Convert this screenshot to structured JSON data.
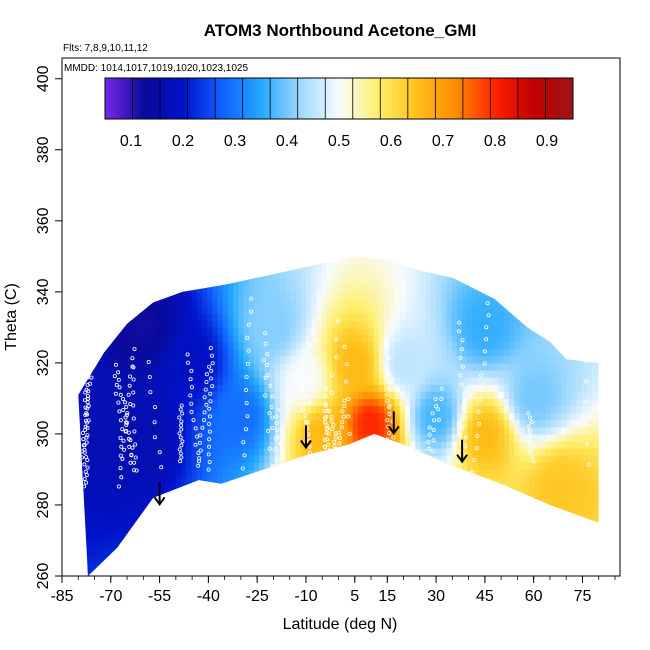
{
  "chart_data": {
    "type": "heatmap",
    "title": "ATOM3 Northbound Acetone_GMI",
    "flights_label": "Flts: 7,8,9,10,11,12",
    "mmdd_label": "MMDD: 1014,1017,1019,1020,1023,1025",
    "xlabel": "Latitude (deg N)",
    "ylabel": "Theta (C)",
    "xlim": [
      -85,
      85
    ],
    "ylim": [
      260,
      405
    ],
    "x_ticks": [
      -85,
      -70,
      -55,
      -40,
      -25,
      -10,
      5,
      15,
      30,
      45,
      60,
      75
    ],
    "x_tick_labels": [
      "-85",
      "-70",
      "-55",
      "-40",
      "-25",
      "-10",
      "5",
      "15",
      "30",
      "45",
      "60",
      "75"
    ],
    "y_ticks": [
      260,
      280,
      300,
      320,
      340,
      360,
      380,
      400
    ],
    "y_tick_labels": [
      "260",
      "280",
      "300",
      "320",
      "340",
      "360",
      "380",
      "400"
    ],
    "colorbar": {
      "range": [
        0.05,
        0.95
      ],
      "ticks": [
        0.1,
        0.2,
        0.3,
        0.4,
        0.5,
        0.6,
        0.7,
        0.8,
        0.9
      ],
      "tick_labels": [
        "0.1",
        "0.2",
        "0.3",
        "0.4",
        "0.5",
        "0.6",
        "0.7",
        "0.8",
        "0.9"
      ],
      "colors": [
        "#7a28e8",
        "#0a0a9a",
        "#0012c8",
        "#1060ff",
        "#22a8ff",
        "#9ed8ff",
        "#f8fbff",
        "#ffef6a",
        "#ffc11a",
        "#ff8a00",
        "#ff2200",
        "#c00000",
        "#a01414"
      ]
    },
    "domain_lower_boundary": [
      [
        -77,
        260
      ],
      [
        -68,
        268
      ],
      [
        -57,
        282
      ],
      [
        -43,
        287
      ],
      [
        -36,
        286
      ],
      [
        -10,
        294
      ],
      [
        3,
        297
      ],
      [
        11,
        300
      ],
      [
        20,
        297
      ],
      [
        35,
        291
      ],
      [
        50,
        286
      ],
      [
        65,
        280
      ],
      [
        80,
        275
      ]
    ],
    "domain_upper_boundary": [
      [
        -80,
        311
      ],
      [
        -72,
        323
      ],
      [
        -65,
        331
      ],
      [
        -57,
        337
      ],
      [
        -48,
        340
      ],
      [
        -35,
        342
      ],
      [
        -25,
        344
      ],
      [
        -15,
        346
      ],
      [
        -5,
        348
      ],
      [
        5,
        350
      ],
      [
        15,
        349
      ],
      [
        25,
        346
      ],
      [
        35,
        344
      ],
      [
        48,
        338
      ],
      [
        58,
        330
      ],
      [
        65,
        326
      ],
      [
        70,
        321
      ],
      [
        80,
        320
      ]
    ],
    "field_anchors": [
      {
        "lat": -75,
        "theta": 300,
        "value": 0.17
      },
      {
        "lat": -60,
        "theta": 300,
        "value": 0.16
      },
      {
        "lat": -60,
        "theta": 330,
        "value": 0.12
      },
      {
        "lat": -45,
        "theta": 320,
        "value": 0.19
      },
      {
        "lat": -30,
        "theta": 305,
        "value": 0.29
      },
      {
        "lat": -20,
        "theta": 330,
        "value": 0.41
      },
      {
        "lat": -10,
        "theta": 315,
        "value": 0.5
      },
      {
        "lat": -5,
        "theta": 300,
        "value": 0.66
      },
      {
        "lat": 5,
        "theta": 320,
        "value": 0.66
      },
      {
        "lat": 10,
        "theta": 303,
        "value": 0.8
      },
      {
        "lat": 20,
        "theta": 320,
        "value": 0.45
      },
      {
        "lat": 30,
        "theta": 305,
        "value": 0.37
      },
      {
        "lat": 45,
        "theta": 330,
        "value": 0.36
      },
      {
        "lat": 45,
        "theta": 300,
        "value": 0.66
      },
      {
        "lat": 60,
        "theta": 310,
        "value": 0.4
      },
      {
        "lat": 68,
        "theta": 285,
        "value": 0.64
      }
    ],
    "arrows": [
      {
        "lat": -55,
        "theta": 283
      },
      {
        "lat": -10,
        "theta": 299
      },
      {
        "lat": 17,
        "theta": 303
      },
      {
        "lat": 38,
        "theta": 295
      }
    ]
  }
}
